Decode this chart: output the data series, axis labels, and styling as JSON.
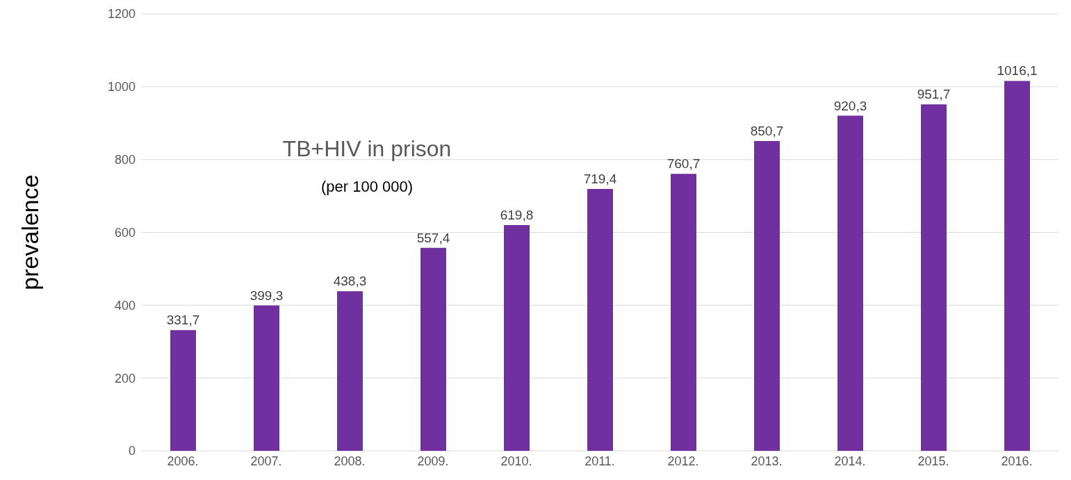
{
  "chart_data": {
    "type": "bar",
    "title": "TB+HIV in prison",
    "subtitle": "(per 100 000)",
    "ylabel": "prevalence",
    "categories": [
      "2006.",
      "2007.",
      "2008.",
      "2009.",
      "2010.",
      "2011.",
      "2012.",
      "2013.",
      "2014.",
      "2015.",
      "2016."
    ],
    "values": [
      331.7,
      399.3,
      438.3,
      557.4,
      619.8,
      719.4,
      760.7,
      850.7,
      920.3,
      951.7,
      1016.1
    ],
    "value_labels": [
      "331,7",
      "399,3",
      "438,3",
      "557,4",
      "619,8",
      "719,4",
      "760,7",
      "850,7",
      "920,3",
      "951,7",
      "1016,1"
    ],
    "color": "#7030a0",
    "ylim": [
      0,
      1200
    ],
    "yticks": [
      0,
      200,
      400,
      600,
      800,
      1000,
      1200
    ],
    "grid": "y"
  }
}
